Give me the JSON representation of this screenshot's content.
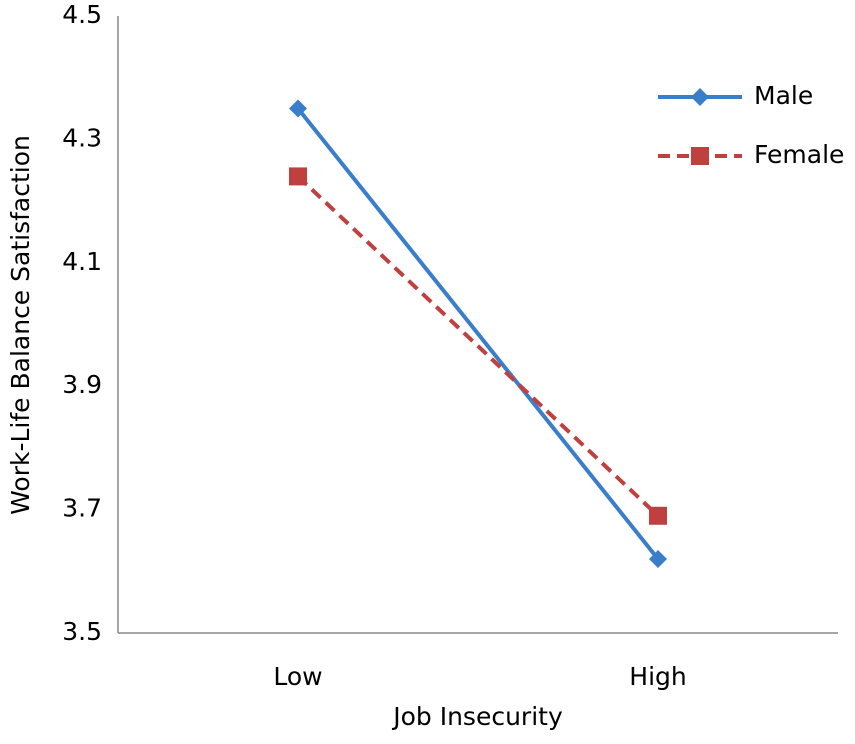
{
  "chart_data": {
    "type": "line",
    "x_label": "Job Insecurity",
    "y_label": "Work-Life Balance Satisfaction",
    "categories": [
      "Low",
      "High"
    ],
    "series": [
      {
        "name": "Male",
        "color": "#3a7dc9",
        "values": [
          4.35,
          3.62
        ],
        "line_style": "solid",
        "marker": "diamond"
      },
      {
        "name": "Female",
        "color": "#c0403f",
        "values": [
          4.24,
          3.69
        ],
        "line_style": "dashed",
        "marker": "square"
      }
    ],
    "ylim": [
      3.5,
      4.5
    ],
    "yticks": [
      3.5,
      3.7,
      3.9,
      4.1,
      4.3,
      4.5
    ],
    "grid": false,
    "legend": "upper right"
  }
}
